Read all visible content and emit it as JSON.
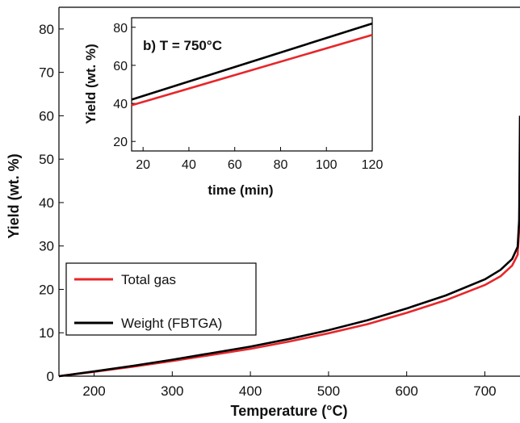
{
  "chart_data": [
    {
      "type": "line",
      "xlabel": "Temperature (°C)",
      "ylabel": "Yield (wt. %)",
      "xlim": [
        155,
        745
      ],
      "ylim": [
        0,
        85
      ],
      "xticks": [
        200,
        300,
        400,
        500,
        600,
        700
      ],
      "yticks": [
        0,
        10,
        20,
        30,
        40,
        50,
        60,
        70,
        80
      ],
      "grid": false,
      "legend_position": "bottom-left",
      "series": [
        {
          "name": "Total gas",
          "color": "#e8262a",
          "x": [
            155,
            200,
            250,
            300,
            350,
            400,
            450,
            500,
            550,
            600,
            650,
            700,
            720,
            735,
            742,
            744,
            745
          ],
          "y": [
            0,
            1.0,
            2.2,
            3.5,
            4.9,
            6.3,
            8.0,
            9.9,
            12.0,
            14.6,
            17.5,
            21.0,
            23.0,
            25.5,
            28.0,
            34.0,
            50.0
          ]
        },
        {
          "name": "Weight (FBTGA)",
          "color": "#000000",
          "x": [
            155,
            200,
            250,
            300,
            350,
            400,
            450,
            500,
            550,
            600,
            650,
            700,
            720,
            735,
            742,
            744,
            745
          ],
          "y": [
            0,
            1.1,
            2.4,
            3.8,
            5.3,
            6.8,
            8.6,
            10.6,
            12.9,
            15.6,
            18.6,
            22.3,
            24.5,
            27.0,
            29.8,
            36.0,
            60.0
          ]
        }
      ]
    },
    {
      "type": "line",
      "title": "b) T = 750°C",
      "xlabel": "time (min)",
      "ylabel": "Yield (wt. %)",
      "xlim": [
        15,
        120
      ],
      "ylim": [
        15,
        85
      ],
      "xticks": [
        20,
        40,
        60,
        80,
        100,
        120
      ],
      "yticks": [
        20,
        40,
        60,
        80
      ],
      "grid": false,
      "series": [
        {
          "color": "#e8262a",
          "x": [
            15,
            120
          ],
          "y": [
            39,
            76
          ]
        },
        {
          "color": "#000000",
          "x": [
            15,
            120
          ],
          "y": [
            42,
            82
          ]
        }
      ]
    }
  ]
}
